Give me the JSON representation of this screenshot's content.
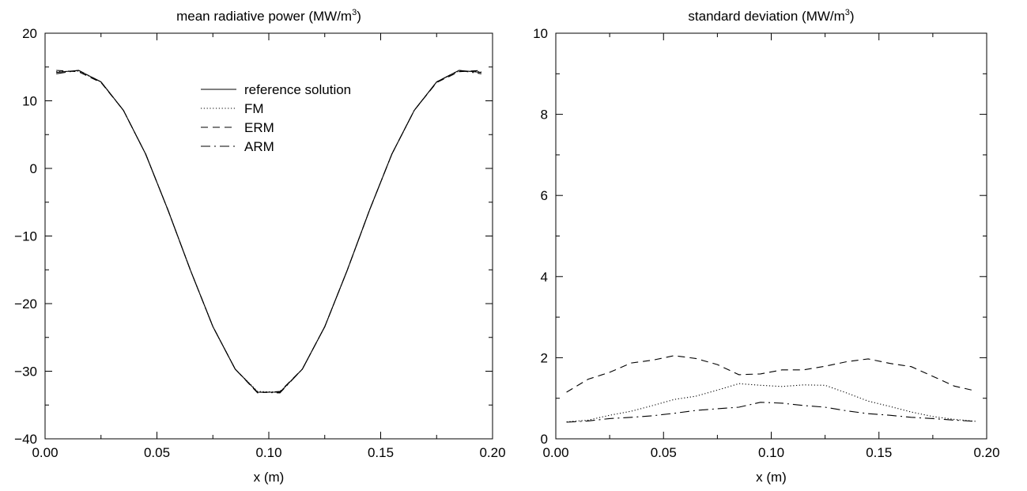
{
  "chart_data": [
    {
      "type": "line",
      "title": "mean radiative power (MW/m",
      "title_superscript": "3",
      "title_suffix": ")",
      "xlabel": "x (m)",
      "ylabel": "",
      "xlim": [
        0.0,
        0.2
      ],
      "ylim": [
        -40,
        20
      ],
      "x_ticks": [
        0.0,
        0.05,
        0.1,
        0.15,
        0.2
      ],
      "x_tick_labels": [
        "0.00",
        "0.05",
        "0.10",
        "0.15",
        "0.20"
      ],
      "y_ticks": [
        -40,
        -30,
        -20,
        -10,
        0,
        10,
        20
      ],
      "y_tick_labels": [
        "−40",
        "−30",
        "−20",
        "−10",
        "0",
        "10",
        "20"
      ],
      "grid": false,
      "legend_position": "top-right",
      "series": [
        {
          "name": "reference solution",
          "style": "solid",
          "x": [
            0.005,
            0.015,
            0.025,
            0.035,
            0.045,
            0.055,
            0.065,
            0.075,
            0.085,
            0.095,
            0.105,
            0.115,
            0.125,
            0.135,
            0.145,
            0.155,
            0.165,
            0.175,
            0.185,
            0.195
          ],
          "values": [
            14.2,
            14.5,
            12.8,
            8.6,
            2.1,
            -6.2,
            -15.1,
            -23.4,
            -29.7,
            -33.1,
            -33.1,
            -29.7,
            -23.4,
            -15.1,
            -6.2,
            2.1,
            8.6,
            12.8,
            14.5,
            14.2
          ]
        },
        {
          "name": "FM",
          "style": "dotted",
          "x": [
            0.005,
            0.015,
            0.025,
            0.035,
            0.045,
            0.055,
            0.065,
            0.075,
            0.085,
            0.095,
            0.105,
            0.115,
            0.125,
            0.135,
            0.145,
            0.155,
            0.165,
            0.175,
            0.185,
            0.195
          ],
          "values": [
            14.3,
            14.4,
            12.8,
            8.6,
            2.1,
            -6.2,
            -15.1,
            -23.4,
            -29.7,
            -33.0,
            -33.1,
            -29.7,
            -23.4,
            -15.1,
            -6.2,
            2.1,
            8.6,
            12.8,
            14.4,
            14.3
          ]
        },
        {
          "name": "ERM",
          "style": "dashed",
          "x": [
            0.005,
            0.015,
            0.025,
            0.035,
            0.045,
            0.055,
            0.065,
            0.075,
            0.085,
            0.095,
            0.105,
            0.115,
            0.125,
            0.135,
            0.145,
            0.155,
            0.165,
            0.175,
            0.185,
            0.195
          ],
          "values": [
            14.5,
            14.3,
            12.7,
            8.6,
            2.1,
            -6.2,
            -15.1,
            -23.4,
            -29.7,
            -33.2,
            -33.0,
            -29.7,
            -23.4,
            -15.1,
            -6.2,
            2.1,
            8.6,
            12.7,
            14.3,
            14.5
          ]
        },
        {
          "name": "ARM",
          "style": "dashdot",
          "x": [
            0.005,
            0.015,
            0.025,
            0.035,
            0.045,
            0.055,
            0.065,
            0.075,
            0.085,
            0.095,
            0.105,
            0.115,
            0.125,
            0.135,
            0.145,
            0.155,
            0.165,
            0.175,
            0.185,
            0.195
          ],
          "values": [
            14.0,
            14.5,
            12.8,
            8.6,
            2.1,
            -6.2,
            -15.1,
            -23.4,
            -29.7,
            -33.1,
            -33.2,
            -29.7,
            -23.4,
            -15.1,
            -6.2,
            2.1,
            8.6,
            12.8,
            14.5,
            14.0
          ]
        }
      ]
    },
    {
      "type": "line",
      "title": "standard deviation (MW/m",
      "title_superscript": "3",
      "title_suffix": ")",
      "xlabel": "x (m)",
      "ylabel": "",
      "xlim": [
        0.0,
        0.2
      ],
      "ylim": [
        0,
        10
      ],
      "x_ticks": [
        0.0,
        0.05,
        0.1,
        0.15,
        0.2
      ],
      "x_tick_labels": [
        "0.00",
        "0.05",
        "0.10",
        "0.15",
        "0.20"
      ],
      "y_ticks": [
        0,
        2,
        4,
        6,
        8,
        10
      ],
      "y_tick_labels": [
        "0",
        "2",
        "4",
        "6",
        "8",
        "10"
      ],
      "grid": false,
      "legend_position": "none",
      "series": [
        {
          "style": "dotted",
          "x": [
            0.005,
            0.015,
            0.025,
            0.035,
            0.045,
            0.055,
            0.065,
            0.075,
            0.085,
            0.095,
            0.105,
            0.115,
            0.125,
            0.135,
            0.145,
            0.155,
            0.165,
            0.175,
            0.185,
            0.195
          ],
          "values": [
            0.42,
            0.46,
            0.58,
            0.68,
            0.82,
            0.97,
            1.05,
            1.2,
            1.36,
            1.32,
            1.29,
            1.33,
            1.32,
            1.13,
            0.93,
            0.8,
            0.66,
            0.55,
            0.48,
            0.43
          ]
        },
        {
          "style": "dashed",
          "x": [
            0.005,
            0.015,
            0.025,
            0.035,
            0.045,
            0.055,
            0.065,
            0.075,
            0.085,
            0.095,
            0.105,
            0.115,
            0.125,
            0.135,
            0.145,
            0.155,
            0.165,
            0.175,
            0.185,
            0.195
          ],
          "values": [
            1.15,
            1.47,
            1.64,
            1.87,
            1.94,
            2.05,
            1.98,
            1.83,
            1.58,
            1.6,
            1.7,
            1.7,
            1.79,
            1.9,
            1.97,
            1.86,
            1.78,
            1.54,
            1.3,
            1.18
          ]
        },
        {
          "style": "dashdot",
          "x": [
            0.005,
            0.015,
            0.025,
            0.035,
            0.045,
            0.055,
            0.065,
            0.075,
            0.085,
            0.095,
            0.105,
            0.115,
            0.125,
            0.135,
            0.145,
            0.155,
            0.165,
            0.175,
            0.185,
            0.195
          ],
          "values": [
            0.41,
            0.44,
            0.5,
            0.53,
            0.57,
            0.63,
            0.7,
            0.74,
            0.78,
            0.9,
            0.88,
            0.82,
            0.78,
            0.69,
            0.62,
            0.58,
            0.53,
            0.5,
            0.46,
            0.43
          ]
        }
      ]
    }
  ]
}
